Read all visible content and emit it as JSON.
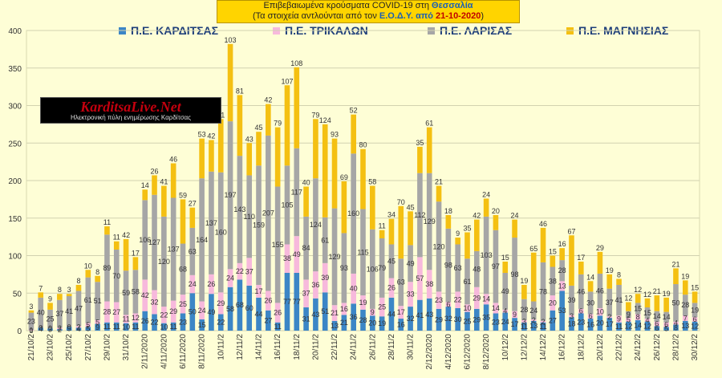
{
  "title": {
    "line1_prefix": "Επιβεβαιωμένα κρούσματα COVID-19 στη ",
    "line1_region": "Θεσσαλία",
    "line2_prefix": "(Τα στοιχεία αντλούνται από τον ",
    "line2_source": "Ε.Ο.Δ.Υ. από ",
    "line2_date": "21-10-2020",
    "line2_suffix": ")"
  },
  "logo": {
    "title": "KarditsaLive.Net",
    "subtitle": "Ηλεκτρονική πύλη ενημέρωσης Καρδίτσας"
  },
  "colors": {
    "background": "#fefed6",
    "karditsa": "#3c86c6",
    "trikala": "#f7b9dc",
    "larisa": "#a6a6a6",
    "magnisia": "#f4c012",
    "title_box": "#ffd400"
  },
  "chart_data": {
    "type": "bar",
    "stacked": true,
    "ylim": [
      0,
      400
    ],
    "yticks": [
      0,
      50,
      100,
      150,
      200,
      250,
      300,
      350,
      400
    ],
    "x_tick_labels": [
      "21/10/2",
      "23/10/2",
      "25/10/2",
      "27/10/2",
      "29/10/2",
      "31/10/2",
      "2/11/2020",
      "4/11/2020",
      "6/11/2020",
      "8/11/2020",
      "10/11/2",
      "12/11/2",
      "14/11/2",
      "16/11/2",
      "18/11/2",
      "20/11/2",
      "22/11/2",
      "24/11/2",
      "26/11/2",
      "28/11/2",
      "30/11/2",
      "2/12/2020",
      "4/12/2020",
      "6/12/2020",
      "8/12/2020",
      "10/12/2",
      "12/12/2",
      "14/12/2",
      "16/12/2",
      "18/12/2",
      "20/12/2",
      "22/12/2",
      "24/12/2",
      "26/12/2",
      "28/12/2",
      "30/12/2"
    ],
    "grid": true,
    "legend_position": "top",
    "series": [
      {
        "name": "Π.Ε. ΚΑΡΔΙΤΣΑΣ",
        "color": "#3c86c6",
        "values": [
          0,
          4,
          3,
          2,
          5,
          4,
          5,
          9,
          11,
          11,
          10,
          11,
          26,
          22,
          10,
          11,
          23,
          50,
          15,
          49,
          22,
          58,
          68,
          60,
          44,
          27,
          11,
          77,
          77,
          31,
          43,
          51,
          13,
          21,
          36,
          28,
          20,
          19,
          44,
          16,
          32,
          41,
          43,
          29,
          32,
          30,
          25,
          29,
          35,
          23,
          24,
          17,
          11,
          13,
          11,
          27,
          53,
          18,
          23,
          16,
          20,
          17,
          11,
          12,
          14,
          12,
          6,
          5,
          8,
          13,
          12
        ]
      },
      {
        "name": "Π.Ε. ΤΡΙΚΑΛΩΝ",
        "color": "#f7b9dc",
        "values": [
          1,
          0,
          0,
          2,
          0,
          2,
          5,
          5,
          28,
          27,
          11,
          12,
          42,
          32,
          22,
          29,
          25,
          24,
          24,
          26,
          29,
          24,
          22,
          37,
          17,
          26,
          26,
          38,
          49,
          37,
          36,
          39,
          21,
          16,
          40,
          19,
          9,
          25,
          26,
          17,
          33,
          57,
          38,
          23,
          6,
          22,
          10,
          29,
          14,
          14,
          4,
          9,
          3,
          2,
          2,
          20,
          13,
          3,
          6,
          6,
          10,
          2,
          9,
          5,
          8,
          4,
          6,
          6,
          4,
          7,
          6
        ]
      },
      {
        "name": "Π.Ε. ΛΑΡΙΣΑΣ",
        "color": "#a6a6a6",
        "values": [
          23,
          40,
          25,
          37,
          41,
          47,
          61,
          51,
          89,
          70,
          59,
          58,
          106,
          127,
          120,
          137,
          68,
          63,
          164,
          137,
          160,
          197,
          143,
          110,
          159,
          207,
          155,
          105,
          117,
          84,
          124,
          61,
          129,
          93,
          160,
          115,
          106,
          79,
          45,
          63,
          49,
          112,
          129,
          120,
          98,
          63,
          61,
          48,
          103,
          97,
          49,
          98,
          28,
          24,
          78,
          38,
          28,
          39,
          46,
          30,
          46,
          37,
          41,
          9,
          15,
          15,
          14,
          14,
          50,
          28,
          19
        ]
      },
      {
        "name": "Π.Ε. ΜΑΓΝΗΣΙΑΣ",
        "color": "#f4c012",
        "values": [
          3,
          7,
          9,
          8,
          3,
          8,
          10,
          8,
          11,
          11,
          42,
          17,
          14,
          26,
          41,
          46,
          59,
          27,
          53,
          42,
          71,
          103,
          81,
          43,
          45,
          42,
          79,
          107,
          108,
          40,
          79,
          124,
          93,
          69,
          52,
          80,
          58,
          11,
          34,
          70,
          45,
          35,
          61,
          21,
          18,
          9,
          35,
          42,
          24,
          20,
          15,
          24,
          19,
          65,
          46,
          15,
          16,
          67,
          17,
          14,
          29,
          19,
          8,
          12,
          12,
          12,
          21,
          19,
          21,
          19,
          15
        ]
      }
    ]
  }
}
